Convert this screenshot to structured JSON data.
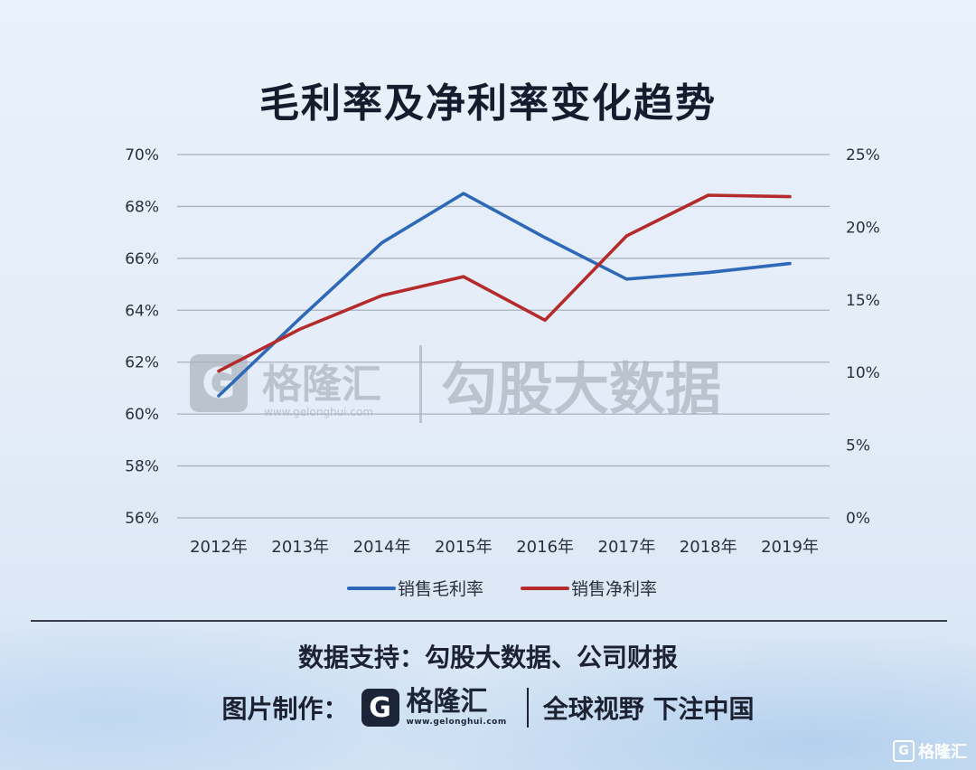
{
  "title": "毛利率及净利率变化趋势",
  "watermark": {
    "brand": "格隆汇",
    "url": "www.gelonghui.com",
    "product": "勾股大数据"
  },
  "footer": {
    "source": "数据支持：勾股大数据、公司财报",
    "made_by_label": "图片制作：",
    "logo_letter": "G",
    "logo_name": "格隆汇",
    "logo_url": "www.gelonghui.com",
    "slogan": "全球视野 下注中国"
  },
  "corner_mark": "格隆汇",
  "chart_data": {
    "type": "line",
    "title": "毛利率及净利率变化趋势",
    "categories": [
      "2012年",
      "2013年",
      "2014年",
      "2015年",
      "2016年",
      "2017年",
      "2018年",
      "2019年"
    ],
    "y_left": {
      "min": 56,
      "max": 70,
      "step": 2,
      "ticks": [
        "56%",
        "58%",
        "60%",
        "62%",
        "64%",
        "66%",
        "68%",
        "70%"
      ]
    },
    "y_right": {
      "min": 0,
      "max": 25,
      "step": 5,
      "ticks": [
        "0%",
        "5%",
        "10%",
        "15%",
        "20%",
        "25%"
      ]
    },
    "grid": true,
    "legend_position": "bottom",
    "series": [
      {
        "name": "销售毛利率",
        "axis": "left",
        "color": "#2e69b8",
        "values": [
          60.7,
          63.7,
          66.6,
          68.5,
          66.8,
          65.2,
          65.45,
          65.8
        ]
      },
      {
        "name": "销售净利率",
        "axis": "right",
        "color": "#b52b2b",
        "values": [
          10.1,
          13.0,
          15.3,
          16.6,
          13.6,
          19.4,
          22.2,
          22.1
        ]
      }
    ]
  }
}
